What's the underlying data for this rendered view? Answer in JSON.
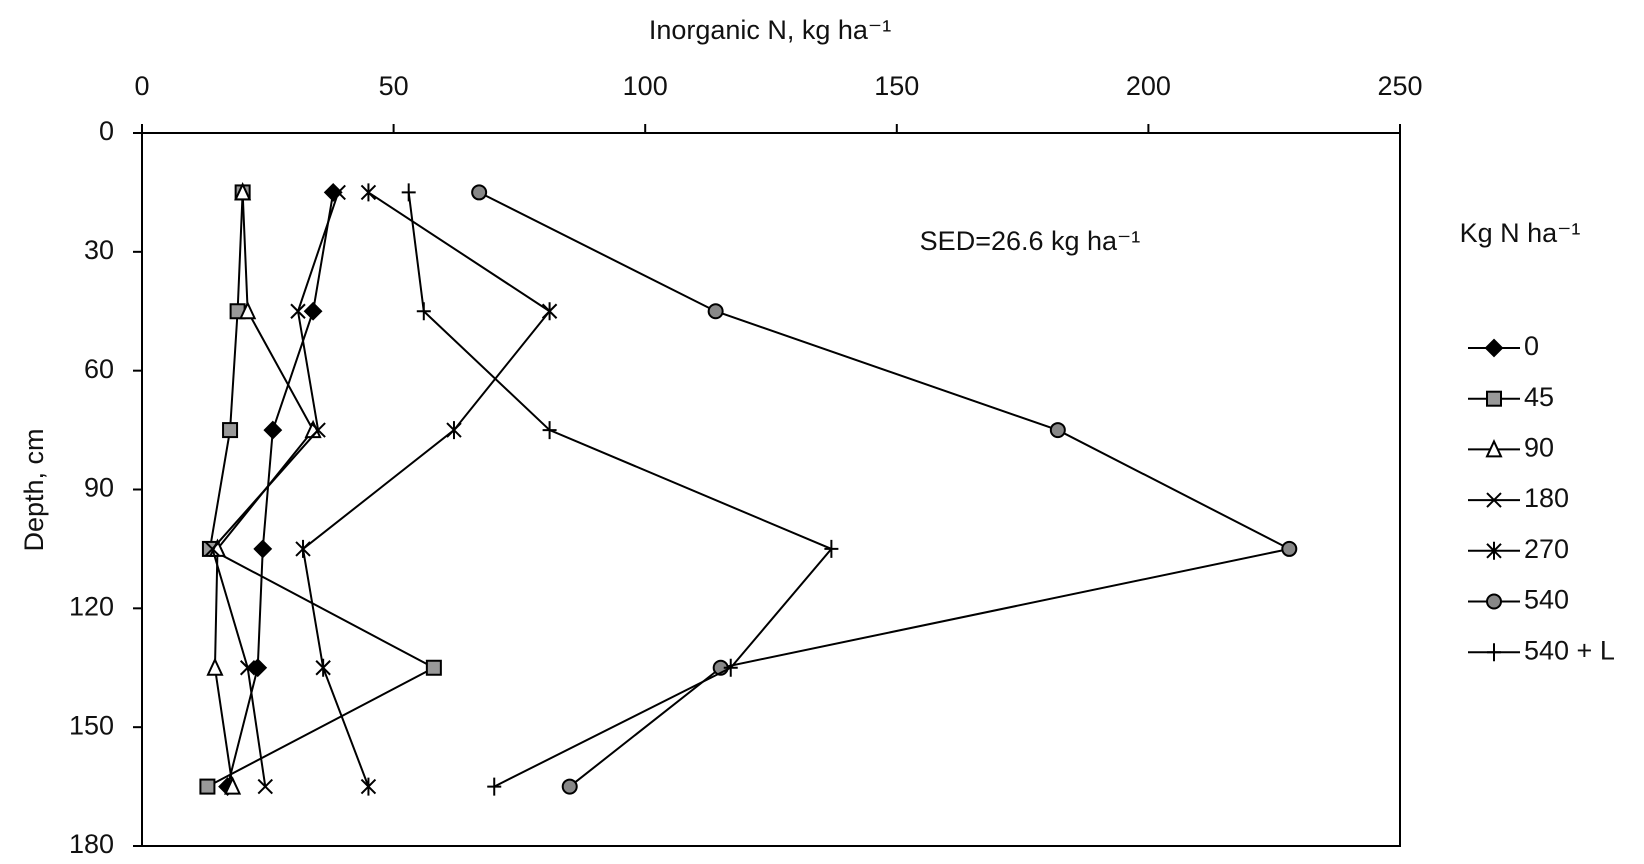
{
  "chart_data": {
    "type": "line",
    "title": "Inorganic N, kg ha⁻¹",
    "y_label": "Depth, cm",
    "annotation": "SED=26.6 kg ha⁻¹",
    "legend_title": "Kg N ha⁻¹",
    "depth": [
      15,
      45,
      75,
      105,
      135,
      165
    ],
    "xlim": [
      0,
      250
    ],
    "xticks": [
      0,
      50,
      100,
      150,
      200,
      250
    ],
    "ylim": [
      0,
      180
    ],
    "yticks": [
      0,
      30,
      60,
      90,
      120,
      150,
      180
    ],
    "y_reversed": true,
    "x_axis_position": "top",
    "grid": false,
    "legend": "right",
    "series": [
      {
        "name": "0",
        "color": "#000000",
        "marker": "diamond",
        "values": [
          38,
          34,
          26,
          24,
          23,
          17
        ]
      },
      {
        "name": "45",
        "color": "#000000",
        "marker": "square",
        "values": [
          20,
          19,
          17.5,
          13.5,
          58,
          13
        ]
      },
      {
        "name": "90",
        "color": "#000000",
        "marker": "triangle",
        "values": [
          20,
          21,
          34,
          15,
          14.5,
          18
        ]
      },
      {
        "name": "180",
        "color": "#000000",
        "marker": "x",
        "values": [
          39,
          31,
          35,
          14,
          21,
          24.5
        ]
      },
      {
        "name": "270",
        "color": "#000000",
        "marker": "asterisk",
        "values": [
          45,
          81,
          62,
          32,
          36,
          45
        ]
      },
      {
        "name": "540",
        "color": "#000000",
        "marker": "circle",
        "values": [
          67,
          114,
          182,
          228,
          115,
          85
        ]
      },
      {
        "name": "540 + L",
        "color": "#000000",
        "marker": "plus",
        "values": [
          53,
          56,
          81,
          137,
          117,
          70
        ]
      }
    ]
  }
}
